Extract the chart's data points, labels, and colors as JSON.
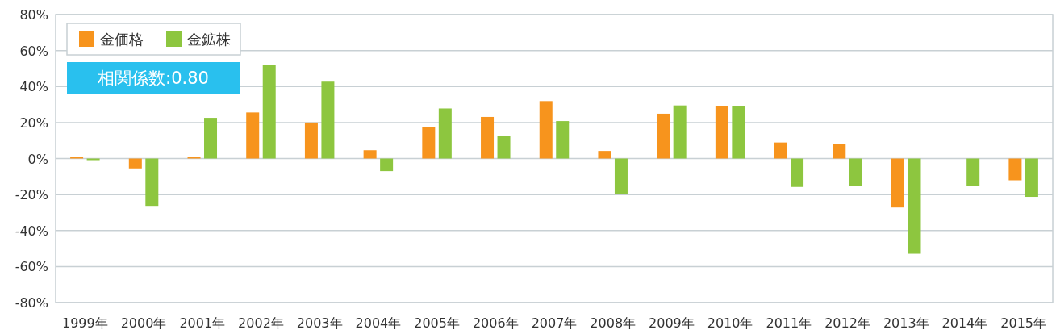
{
  "chart_data": {
    "type": "bar",
    "categories": [
      "1999年",
      "2000年",
      "2001年",
      "2002年",
      "2003年",
      "2004年",
      "2005年",
      "2006年",
      "2007年",
      "2008年",
      "2009年",
      "2010年",
      "2011年",
      "2012年",
      "2013年",
      "2014年",
      "2015年"
    ],
    "series": [
      {
        "name": "金価格",
        "color": "#f7941d",
        "values": [
          0.7,
          -5.5,
          0.7,
          25.6,
          20,
          4.6,
          17.7,
          23.1,
          31.9,
          4.2,
          24.9,
          29.2,
          8.9,
          8.2,
          -27.2,
          null,
          -12.1
        ]
      },
      {
        "name": "金鉱株",
        "color": "#8dc63f",
        "values": [
          -0.9,
          -26.3,
          22.6,
          52.1,
          42.7,
          -7,
          27.8,
          12.5,
          20.8,
          -19.8,
          29.5,
          28.9,
          -15.8,
          -15.3,
          -52.9,
          -15.2,
          -21.3
        ]
      }
    ],
    "ylim": [
      -80,
      80
    ],
    "yticks": [
      {
        "value": -80,
        "label": "-80%"
      },
      {
        "value": -60,
        "label": "-60%"
      },
      {
        "value": -40,
        "label": "-40%"
      },
      {
        "value": -20,
        "label": "-20%"
      },
      {
        "value": 0,
        "label": "0%"
      },
      {
        "value": 20,
        "label": "20%"
      },
      {
        "value": 40,
        "label": "40%"
      },
      {
        "value": 60,
        "label": "60%"
      },
      {
        "value": 80,
        "label": "80%"
      }
    ],
    "grid": "y",
    "legend": "top left",
    "annotations": [
      "相関係数:0.80"
    ]
  }
}
